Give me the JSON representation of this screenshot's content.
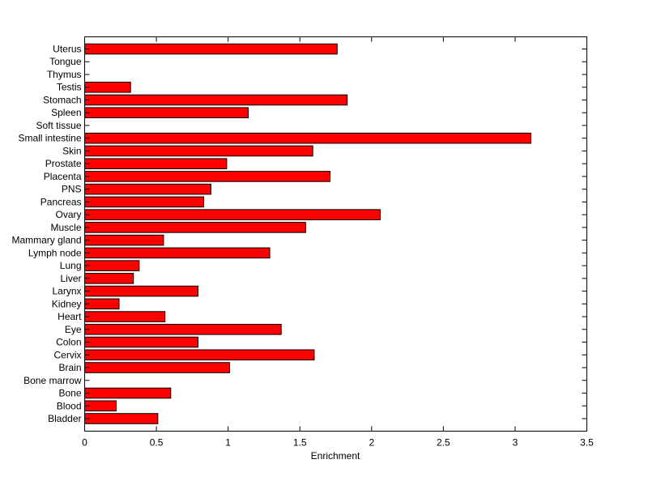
{
  "chart_data": {
    "type": "bar",
    "orientation": "horizontal",
    "title": "",
    "xlabel": "Enrichment",
    "ylabel": "",
    "xlim": [
      0,
      3.5
    ],
    "xticks": [
      0,
      0.5,
      1,
      1.5,
      2,
      2.5,
      3,
      3.5
    ],
    "xtick_labels": [
      "0",
      "0.5",
      "1",
      "1.5",
      "2",
      "2.5",
      "3",
      "3.5"
    ],
    "grid": false,
    "legend": "none",
    "bar_color": "#ff0000",
    "categories": [
      "Uterus",
      "Tongue",
      "Thymus",
      "Testis",
      "Stomach",
      "Spleen",
      "Soft tissue",
      "Small intestine",
      "Skin",
      "Prostate",
      "Placenta",
      "PNS",
      "Pancreas",
      "Ovary",
      "Muscle",
      "Mammary gland",
      "Lymph node",
      "Lung",
      "Liver",
      "Larynx",
      "Kidney",
      "Heart",
      "Eye",
      "Colon",
      "Cervix",
      "Brain",
      "Bone marrow",
      "Bone",
      "Blood",
      "Bladder"
    ],
    "values": [
      1.76,
      0,
      0,
      0.32,
      1.83,
      1.14,
      0,
      3.11,
      1.59,
      0.99,
      1.71,
      0.88,
      0.83,
      2.06,
      1.54,
      0.55,
      1.29,
      0.38,
      0.34,
      0.79,
      0.24,
      0.56,
      1.37,
      0.79,
      1.6,
      1.01,
      0,
      0.6,
      0.22,
      0.51
    ]
  }
}
